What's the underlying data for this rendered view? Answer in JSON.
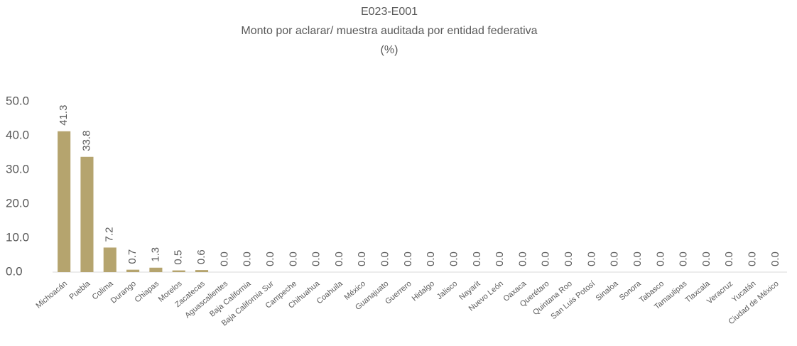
{
  "chart_data": {
    "type": "bar",
    "title": "E023-E001",
    "subtitle": "Monto por  aclarar/ muestra auditada por entidad federativa",
    "unit_label": "(%)",
    "categories": [
      "Michoacán",
      "Puebla",
      "Colima",
      "Durango",
      "Chiapas",
      "Morelos",
      "Zacatecas",
      "Aguascalientes",
      "Baja California",
      "Baja California Sur",
      "Campeche",
      "Chihuahua",
      "Coahuila",
      "México",
      "Guanajuato",
      "Guerrero",
      "Hidalgo",
      "Jalisco",
      "Nayarit",
      "Nuevo León",
      "Oaxaca",
      "Querétaro",
      "Quintana Roo",
      "San Luis Potosí",
      "Sinaloa",
      "Sonora",
      "Tabasco",
      "Tamaulipas",
      "Tlaxcala",
      "Veracruz",
      "Yucatán",
      "Ciudad de México"
    ],
    "values": [
      41.3,
      33.8,
      7.2,
      0.7,
      1.3,
      0.5,
      0.6,
      0,
      0,
      0,
      0,
      0,
      0,
      0,
      0,
      0,
      0,
      0,
      0,
      0,
      0,
      0,
      0,
      0,
      0,
      0,
      0,
      0,
      0,
      0,
      0,
      0
    ],
    "value_labels": [
      "41.3",
      "33.8",
      "7.2",
      "0.7",
      "1.3",
      "0.5",
      "0.6",
      "0.0",
      "0.0",
      "0.0",
      "0.0",
      "0.0",
      "0.0",
      "0.0",
      "0.0",
      "0.0",
      "0.0",
      "0.0",
      "0.0",
      "0.0",
      "0.0",
      "0.0",
      "0.0",
      "0.0",
      "0.0",
      "0.0",
      "0.0",
      "0.0",
      "0.0",
      "0.0",
      "0.0",
      "0.0"
    ],
    "color": "#b5a46e",
    "ylim": [
      0,
      50
    ],
    "yticks": [
      {
        "value": 0,
        "label": "0.0"
      },
      {
        "value": 10,
        "label": "10.0"
      },
      {
        "value": 20,
        "label": "20.0"
      },
      {
        "value": 30,
        "label": "30.0"
      },
      {
        "value": 40,
        "label": "40.0"
      },
      {
        "value": 50,
        "label": "50.0"
      }
    ],
    "grid": false
  }
}
